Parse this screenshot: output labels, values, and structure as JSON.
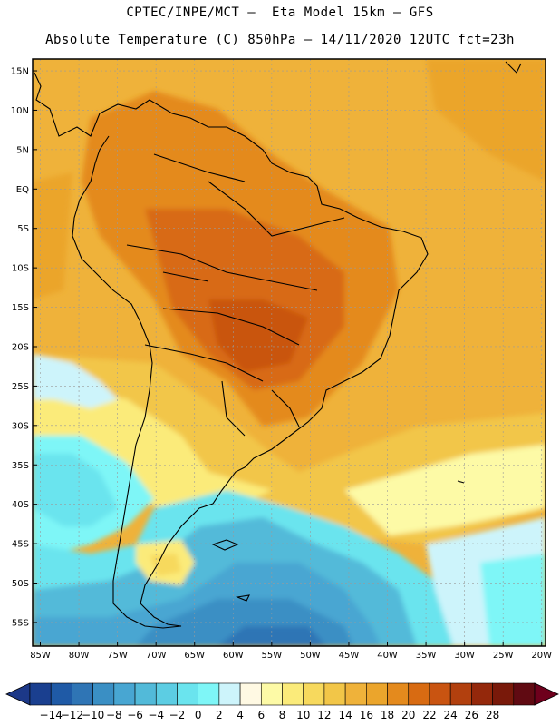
{
  "header": {
    "line1": "CPTEC/INPE/MCT –  Eta Model 15km – GFS",
    "line2": "Absolute Temperature (C) 850hPa – 14/11/2020 12UTC fct=23h"
  },
  "map": {
    "lat_labels": [
      "15N",
      "10N",
      "5N",
      "EQ",
      "5S",
      "10S",
      "15S",
      "20S",
      "25S",
      "30S",
      "35S",
      "40S",
      "45S",
      "50S",
      "55S"
    ],
    "lon_labels": [
      "85W",
      "80W",
      "75W",
      "70W",
      "65W",
      "60W",
      "55W",
      "50W",
      "45W",
      "40W",
      "35W",
      "30W",
      "25W",
      "20W"
    ],
    "lon_range": [
      -86,
      -19.5
    ],
    "lat_range": [
      -58,
      16.5
    ],
    "grid": true
  },
  "colorbar": {
    "labels": [
      "-14",
      "-12",
      "-10",
      "-8",
      "-6",
      "-4",
      "-2",
      "0",
      "2",
      "4",
      "6",
      "8",
      "10",
      "12",
      "14",
      "16",
      "18",
      "20",
      "22",
      "24",
      "26",
      "28"
    ],
    "colors": [
      "#1a3f8f",
      "#1f5aa6",
      "#2f75b5",
      "#3a8fc4",
      "#48a6d2",
      "#52bad9",
      "#5ccde3",
      "#6ae4ee",
      "#7ef6f7",
      "#cdf4fb",
      "#fff9e3",
      "#fdfaa6",
      "#fbeb7a",
      "#f7d95d",
      "#f2c648",
      "#efb23a",
      "#eba52c",
      "#e48a1d",
      "#d86b12",
      "#c95411",
      "#b2400e",
      "#94280b",
      "#79190a",
      "#600a12"
    ],
    "over_color": "#6e001c",
    "under_color": "#1c3888"
  }
}
